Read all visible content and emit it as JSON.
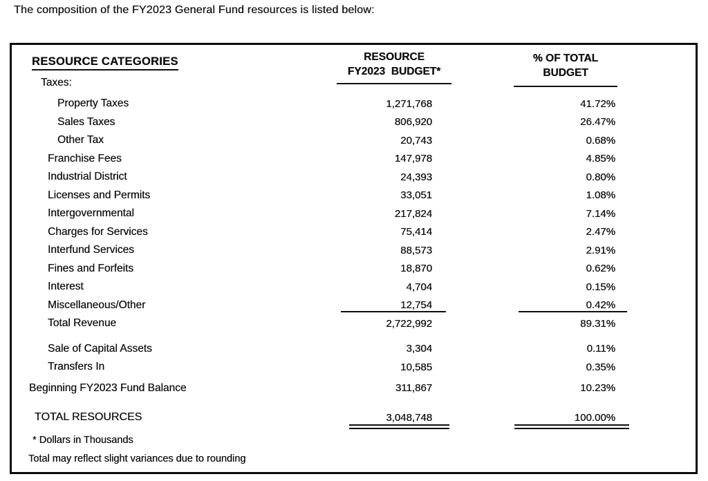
{
  "page": {
    "intro": "The composition of the FY2023 General Fund resources is listed below:"
  },
  "table": {
    "category_header": "RESOURCE CATEGORIES",
    "budget_header": {
      "line1": "RESOURCE",
      "line2": "FY2023  BUDGET*"
    },
    "pct_header": {
      "line1": "% OF TOTAL",
      "line2": "BUDGET"
    },
    "rows": [
      {
        "label": "Taxes:",
        "budget": "",
        "pct": "",
        "indent": 2
      },
      {
        "label": "Property Taxes",
        "budget": "1,271,768",
        "pct": "41.72%",
        "indent": 4
      },
      {
        "label": "Sales Taxes",
        "budget": "806,920",
        "pct": "26.47%",
        "indent": 4
      },
      {
        "label": "Other Tax",
        "budget": "20,743",
        "pct": "0.68%",
        "indent": 4
      },
      {
        "label": "Franchise Fees",
        "budget": "147,978",
        "pct": "4.85%",
        "indent": 3
      },
      {
        "label": "Industrial District",
        "budget": "24,393",
        "pct": "0.80%",
        "indent": 3
      },
      {
        "label": "Licenses and Permits",
        "budget": "33,051",
        "pct": "1.08%",
        "indent": 3
      },
      {
        "label": "Intergovernmental",
        "budget": "217,824",
        "pct": "7.14%",
        "indent": 3
      },
      {
        "label": "Charges for Services",
        "budget": "75,414",
        "pct": "2.47%",
        "indent": 3
      },
      {
        "label": "Interfund Services",
        "budget": "88,573",
        "pct": "2.91%",
        "indent": 3
      },
      {
        "label": "Fines and Forfeits",
        "budget": "18,870",
        "pct": "0.62%",
        "indent": 3
      },
      {
        "label": "Interest",
        "budget": "4,704",
        "pct": "0.15%",
        "indent": 3
      },
      {
        "label": "Miscellaneous/Other",
        "budget": "12,754",
        "pct": "0.42%",
        "indent": 3,
        "rule": "single"
      },
      {
        "label": "Total Revenue",
        "budget": "2,722,992",
        "pct": "89.31%",
        "indent": 3
      },
      {
        "label": "Sale of Capital Assets",
        "budget": "3,304",
        "pct": "0.11%",
        "indent": 3,
        "spacer": "sm"
      },
      {
        "label": "Transfers In",
        "budget": "10,585",
        "pct": "0.35%",
        "indent": 3
      },
      {
        "label": "Beginning FY2023 Fund Balance",
        "budget": "311,867",
        "pct": "10.23%",
        "indent": 0,
        "spacer": "xs"
      },
      {
        "label": "TOTAL RESOURCES",
        "budget": "3,048,748",
        "pct": "100.00%",
        "indent": 1,
        "spacer": "md",
        "rule": "double"
      }
    ],
    "footnotes": [
      "* Dollars in Thousands",
      "Total may reflect slight variances due to rounding"
    ]
  }
}
